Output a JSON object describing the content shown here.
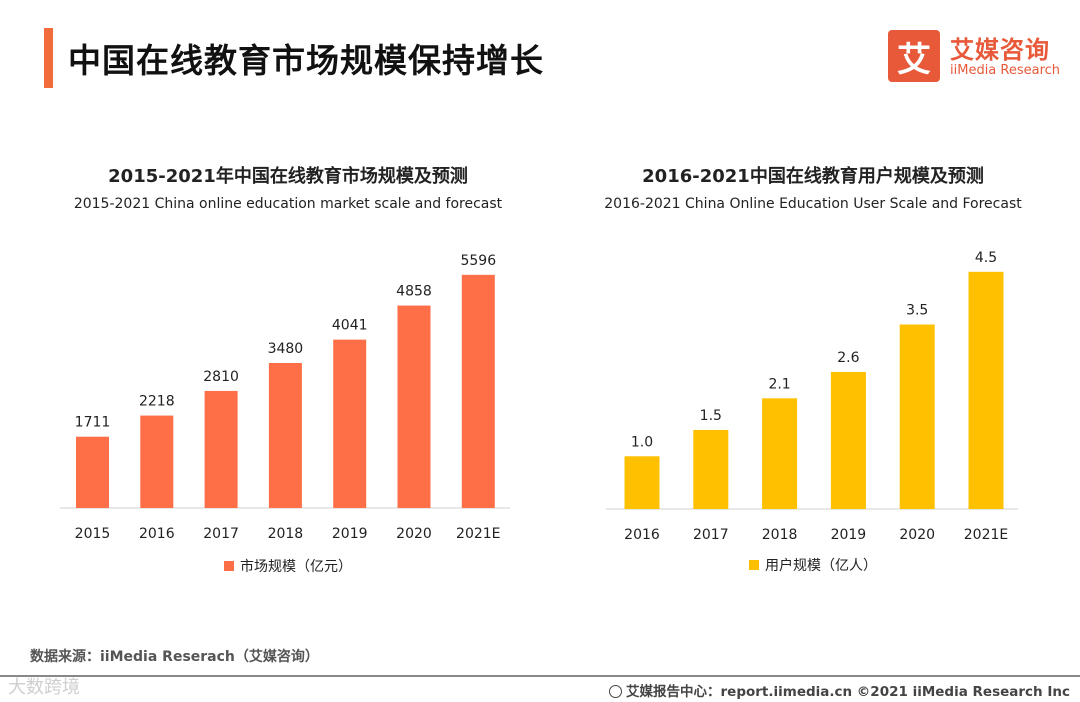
{
  "page": {
    "title": "中国在线教育市场规模保持增长",
    "logo_mark": "艾",
    "logo_cn": "艾媒咨询",
    "logo_en": "iiMedia Research",
    "source": "数据来源：iiMedia Reserach（艾媒咨询）",
    "footer": "艾媒报告中心：report.iimedia.cn  ©2021  iiMedia Research  Inc",
    "watermark": "大数跨境"
  },
  "chart_data": [
    {
      "type": "bar",
      "title": "2015-2021年中国在线教育市场规模及预测",
      "subtitle": "2015-2021 China online education market scale and forecast",
      "categories": [
        "2015",
        "2016",
        "2017",
        "2018",
        "2019",
        "2020",
        "2021E"
      ],
      "series": [
        {
          "name": "市场规模（亿元）",
          "values": [
            1711,
            2218,
            2810,
            3480,
            4041,
            4858,
            5596
          ],
          "color": "#ff6f47"
        }
      ],
      "value_labels": [
        "1711",
        "2218",
        "2810",
        "3480",
        "4041",
        "4858",
        "5596"
      ],
      "ylim": [
        0,
        6000
      ],
      "grid": false,
      "legend_position": "bottom"
    },
    {
      "type": "bar",
      "title": "2016-2021中国在线教育用户规模及预测",
      "subtitle": "2016-2021 China Online Education User Scale and Forecast",
      "categories": [
        "2016",
        "2017",
        "2018",
        "2019",
        "2020",
        "2021E"
      ],
      "series": [
        {
          "name": "用户规模（亿人）",
          "values": [
            1.0,
            1.5,
            2.1,
            2.6,
            3.5,
            4.5
          ],
          "color": "#ffc000"
        }
      ],
      "value_labels": [
        "1.0",
        "1.5",
        "2.1",
        "2.6",
        "3.5",
        "4.5"
      ],
      "ylim": [
        0,
        4.8
      ],
      "grid": false,
      "legend_position": "bottom"
    }
  ]
}
